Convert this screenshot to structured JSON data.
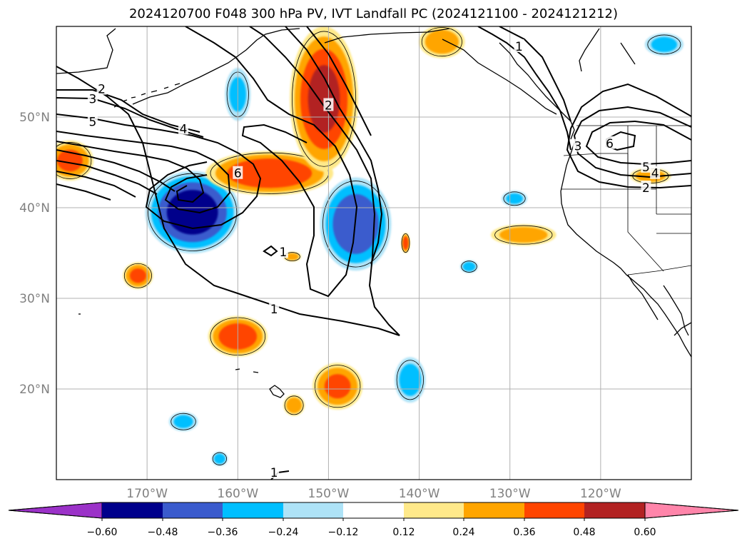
{
  "title": "2024120700 F048 300 hPa PV, IVT Landfall PC (2024121100 - 2024121212)",
  "map": {
    "lon_range": [
      -180,
      -110
    ],
    "lat_range": [
      10,
      60
    ],
    "lon_ticks": [
      {
        "lon": -170,
        "label": "170°W"
      },
      {
        "lon": -160,
        "label": "160°W"
      },
      {
        "lon": -150,
        "label": "150°W"
      },
      {
        "lon": -140,
        "label": "140°W"
      },
      {
        "lon": -130,
        "label": "130°W"
      },
      {
        "lon": -120,
        "label": "120°W"
      }
    ],
    "lat_ticks": [
      {
        "lat": 20,
        "label": "20°N"
      },
      {
        "lat": 30,
        "label": "30°N"
      },
      {
        "lat": 40,
        "label": "40°N"
      },
      {
        "lat": 50,
        "label": "50°N"
      }
    ],
    "grid": true,
    "contour_labels": [
      {
        "text": "2",
        "lon": -175,
        "lat": 53.1
      },
      {
        "text": "3",
        "lon": -176,
        "lat": 52.0
      },
      {
        "text": "5",
        "lon": -176,
        "lat": 49.5
      },
      {
        "text": "4",
        "lon": -166,
        "lat": 48.7
      },
      {
        "text": "6",
        "lon": -160,
        "lat": 43.8
      },
      {
        "text": "2",
        "lon": -150,
        "lat": 51.3
      },
      {
        "text": "1",
        "lon": -155,
        "lat": 35.1
      },
      {
        "text": "1",
        "lon": -156,
        "lat": 28.8
      },
      {
        "text": "1",
        "lon": -156,
        "lat": 10.8
      },
      {
        "text": "1",
        "lon": -129,
        "lat": 57.8
      },
      {
        "text": "6",
        "lon": -119,
        "lat": 47.1
      },
      {
        "text": "5",
        "lon": -115,
        "lat": 44.5
      },
      {
        "text": "4",
        "lon": -114,
        "lat": 43.8
      },
      {
        "text": "2",
        "lon": -115,
        "lat": 42.2
      },
      {
        "text": "3",
        "lon": -122.5,
        "lat": 46.8
      }
    ]
  },
  "colorbar": {
    "colors": [
      "#9b32c8",
      "#00008b",
      "#3a5bcd",
      "#00bfff",
      "#aee3f7",
      "#ffffff",
      "#ffe98a",
      "#ffa500",
      "#ff4500",
      "#b22222",
      "#ff85aa"
    ],
    "tick_labels": [
      "−0.60",
      "−0.48",
      "−0.36",
      "−0.24",
      "−0.12",
      "0.12",
      "0.24",
      "0.36",
      "0.48",
      "0.60"
    ]
  },
  "fill_anomalies": [
    {
      "lon": -165,
      "lat": 39.5,
      "rx": 5.5,
      "ry": 4.8,
      "value": -0.55
    },
    {
      "lon": -147,
      "lat": 38.2,
      "rx": 4.2,
      "ry": 5.5,
      "value": -0.45
    },
    {
      "lon": -156.5,
      "lat": 43.8,
      "rx": 7.5,
      "ry": 2.6,
      "value": 0.47
    },
    {
      "lon": -150.5,
      "lat": 52.0,
      "rx": 4.0,
      "ry": 8.5,
      "value": 0.5
    },
    {
      "lon": -160,
      "lat": 25.8,
      "rx": 3.5,
      "ry": 2.4,
      "value": 0.45
    },
    {
      "lon": -171,
      "lat": 32.5,
      "rx": 1.8,
      "ry": 1.6,
      "value": 0.38
    },
    {
      "lon": -178.5,
      "lat": 45.2,
      "rx": 2.8,
      "ry": 2.4,
      "value": 0.38
    },
    {
      "lon": -149,
      "lat": 20.3,
      "rx": 3.0,
      "ry": 2.8,
      "value": 0.37
    },
    {
      "lon": -160,
      "lat": 52.5,
      "rx": 1.6,
      "ry": 3.3,
      "value": -0.25
    },
    {
      "lon": -141,
      "lat": 21.0,
      "rx": 1.9,
      "ry": 2.8,
      "value": -0.28
    },
    {
      "lon": -128.5,
      "lat": 37.0,
      "rx": 4.0,
      "ry": 1.3,
      "value": 0.3
    },
    {
      "lon": -129.5,
      "lat": 41.0,
      "rx": 1.6,
      "ry": 1.0,
      "value": -0.25
    },
    {
      "lon": -113,
      "lat": 58.0,
      "rx": 2.4,
      "ry": 1.4,
      "value": -0.26
    },
    {
      "lon": -137.5,
      "lat": 58.3,
      "rx": 2.8,
      "ry": 2.0,
      "value": 0.3
    },
    {
      "lon": -141.5,
      "lat": 36.1,
      "rx": 0.5,
      "ry": 1.2,
      "value": 0.45
    },
    {
      "lon": -134.5,
      "lat": 33.5,
      "rx": 1.1,
      "ry": 0.8,
      "value": -0.28
    },
    {
      "lon": -162,
      "lat": 12.3,
      "rx": 1.0,
      "ry": 0.9,
      "value": -0.27
    },
    {
      "lon": -166,
      "lat": 16.4,
      "rx": 1.8,
      "ry": 1.2,
      "value": -0.26
    },
    {
      "lon": -153.8,
      "lat": 18.2,
      "rx": 1.3,
      "ry": 1.3,
      "value": 0.3
    },
    {
      "lon": -154,
      "lat": 34.6,
      "rx": 1.1,
      "ry": 0.6,
      "value": 0.28
    },
    {
      "lon": -114.5,
      "lat": 43.5,
      "rx": 2.5,
      "ry": 1.0,
      "value": 0.3
    }
  ]
}
